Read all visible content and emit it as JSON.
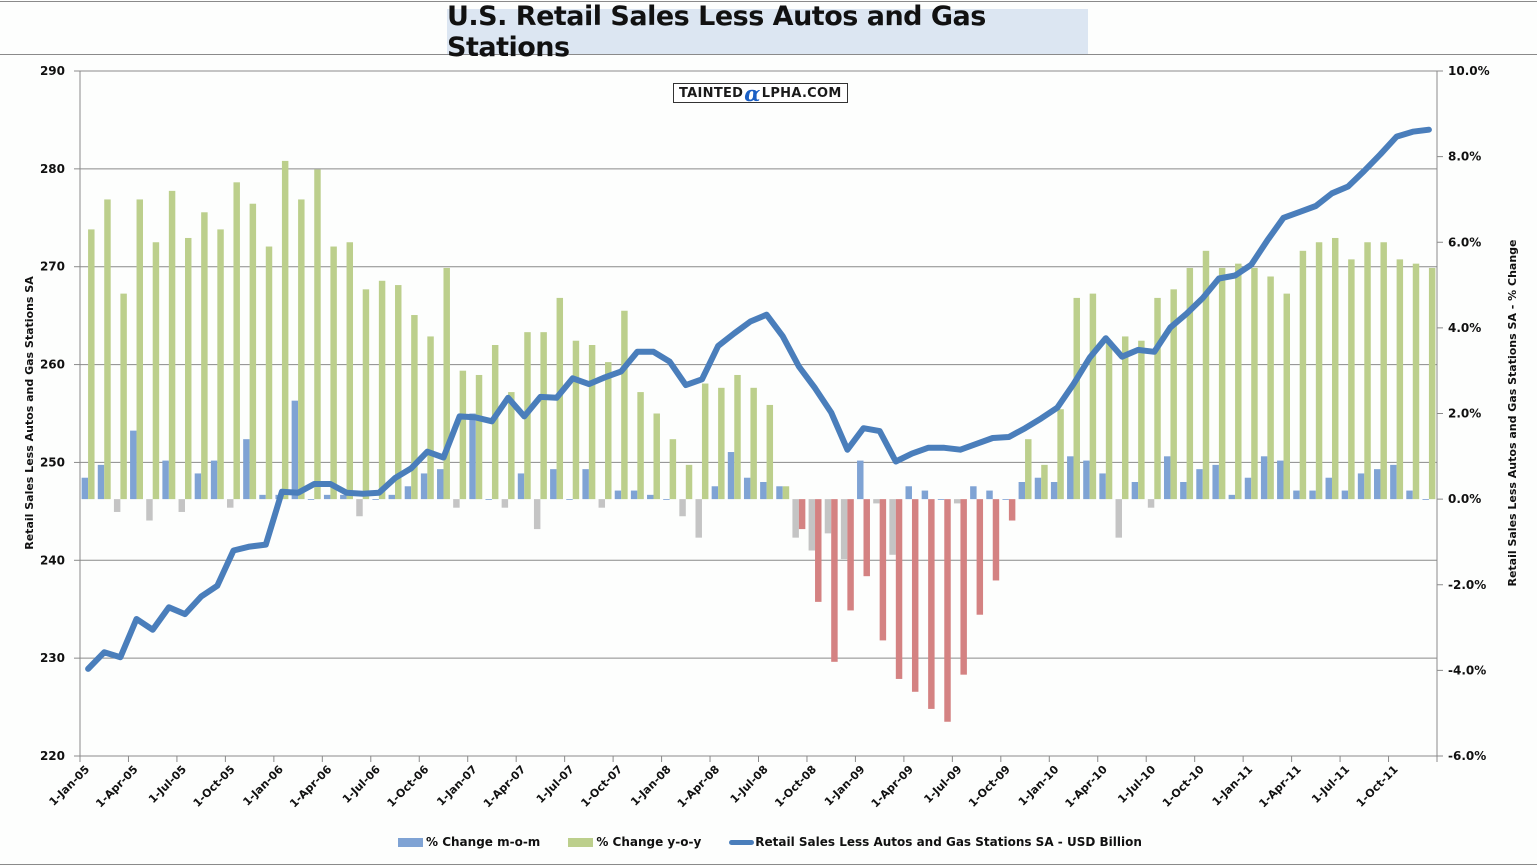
{
  "chart_data": {
    "type": "bar+line",
    "title": "U.S. Retail Sales Less Autos and Gas Stations",
    "watermark": "TaintedAlpha.com",
    "ylabel_left": "Retail Sales Less Autos and Gas Stations SA",
    "ylabel_right": "Retail Sales Less Autos and Gas Stations SA - % Change",
    "ylim_left": [
      220,
      290
    ],
    "ylim_right": [
      -6.0,
      10.0
    ],
    "yticks_left": [
      "290",
      "280",
      "270",
      "260",
      "250",
      "240",
      "230",
      "220"
    ],
    "yticks_right": [
      "10.0%",
      "8.0%",
      "6.0%",
      "4.0%",
      "2.0%",
      "0.0%",
      "-2.0%",
      "-4.0%",
      "-6.0%"
    ],
    "yticks_left_values": [
      290,
      280,
      270,
      260,
      250,
      240,
      230,
      220
    ],
    "yticks_right_values": [
      10,
      8,
      6,
      4,
      2,
      0,
      -2,
      -4,
      -6
    ],
    "grid": true,
    "legend_position": "bottom",
    "xtick_labels": [
      "1-Jan-05",
      "1-Apr-05",
      "1-Jul-05",
      "1-Oct-05",
      "1-Jan-06",
      "1-Apr-06",
      "1-Jul-06",
      "1-Oct-06",
      "1-Jan-07",
      "1-Apr-07",
      "1-Jul-07",
      "1-Oct-07",
      "1-Jan-08",
      "1-Apr-08",
      "1-Jul-08",
      "1-Oct-08",
      "1-Jan-09",
      "1-Apr-09",
      "1-Jul-09",
      "1-Oct-09",
      "1-Jan-10",
      "1-Apr-10",
      "1-Jul-10",
      "1-Oct-10",
      "1-Jan-11",
      "1-Apr-11",
      "1-Jul-11",
      "1-Oct-11"
    ],
    "start_month": "Jan-05",
    "num_months": 84,
    "colors": {
      "mom_positive": "#7fa3d4",
      "mom_negative": "#c4c4c4",
      "yoy_positive": "#bccf8c",
      "yoy_negative": "#d48282",
      "line": "#4a7ebb",
      "grid": "#8a8a8a"
    },
    "series": [
      {
        "name": "% Change m-o-m",
        "axis": "right",
        "type": "bar",
        "values": [
          0.5,
          0.8,
          -0.3,
          1.6,
          -0.5,
          0.9,
          -0.3,
          0.6,
          0.9,
          -0.2,
          1.4,
          0.1,
          0.1,
          2.3,
          0.0,
          0.1,
          0.1,
          -0.4,
          0.0,
          0.1,
          0.3,
          0.6,
          0.7,
          -0.2,
          2.0,
          0.0,
          -0.2,
          0.6,
          -0.7,
          0.7,
          0.0,
          0.7,
          -0.2,
          0.2,
          0.2,
          0.1,
          0.0,
          -0.4,
          -0.9,
          0.3,
          1.1,
          0.5,
          0.4,
          0.3,
          -0.9,
          -1.2,
          -0.8,
          -1.4,
          0.9,
          -0.1,
          -1.3,
          0.3,
          0.2,
          0.0,
          -0.1,
          0.3,
          0.2,
          0.0,
          0.4,
          0.5,
          0.4,
          1.0,
          0.9,
          0.6,
          -0.9,
          0.4,
          -0.2,
          1.0,
          0.4,
          0.7,
          0.8,
          0.1,
          0.5,
          1.0,
          0.9,
          0.2,
          0.2,
          0.5,
          0.2,
          0.6,
          0.7,
          0.8,
          0.2,
          0.0
        ]
      },
      {
        "name": "% Change y-o-y",
        "axis": "right",
        "type": "bar",
        "values": [
          6.3,
          7.0,
          4.8,
          7.0,
          6.0,
          7.2,
          6.1,
          6.7,
          6.3,
          7.4,
          6.9,
          5.9,
          7.9,
          7.0,
          7.7,
          5.9,
          6.0,
          4.9,
          5.1,
          5.0,
          4.3,
          3.8,
          5.4,
          3.0,
          2.9,
          3.6,
          2.5,
          3.9,
          3.9,
          4.7,
          3.7,
          3.6,
          3.2,
          4.4,
          2.5,
          2.0,
          1.4,
          0.8,
          2.7,
          2.6,
          2.9,
          2.6,
          2.2,
          0.3,
          -0.7,
          -2.4,
          -3.8,
          -2.6,
          -1.8,
          -3.3,
          -4.2,
          -4.5,
          -4.9,
          -5.2,
          -4.1,
          -2.7,
          -1.9,
          -0.5,
          1.4,
          0.8,
          2.1,
          4.7,
          4.8,
          3.7,
          3.8,
          3.7,
          4.7,
          4.9,
          5.4,
          5.8,
          5.4,
          5.5,
          5.4,
          5.2,
          4.8,
          5.8,
          6.0,
          6.1,
          5.6,
          6.0,
          6.0,
          5.6,
          5.5,
          5.4
        ]
      },
      {
        "name": "Retail Sales Less Autos and Gas Stations SA - USD Billion",
        "axis": "left",
        "type": "line",
        "values": [
          228.9,
          230.6,
          230.1,
          234.0,
          232.9,
          235.2,
          234.5,
          236.3,
          237.4,
          241.0,
          241.4,
          241.6,
          247.0,
          246.9,
          247.8,
          247.8,
          246.9,
          246.8,
          246.9,
          248.4,
          249.4,
          251.1,
          250.5,
          254.7,
          254.6,
          254.2,
          256.6,
          254.7,
          256.7,
          256.6,
          258.6,
          258.0,
          258.7,
          259.3,
          261.3,
          261.3,
          260.3,
          257.9,
          258.5,
          261.9,
          263.2,
          264.4,
          265.1,
          262.9,
          259.8,
          257.6,
          255.1,
          251.3,
          253.5,
          253.2,
          250.1,
          250.9,
          251.5,
          251.5,
          251.3,
          251.9,
          252.5,
          252.6,
          253.5,
          254.5,
          255.6,
          258.0,
          260.7,
          262.7,
          260.8,
          261.5,
          261.3,
          263.8,
          265.2,
          266.8,
          268.8,
          269.1,
          270.2,
          272.7,
          275.0,
          275.6,
          276.2,
          277.5,
          278.2,
          279.8,
          281.5,
          283.3,
          283.8,
          284.0
        ]
      }
    ]
  },
  "header": {
    "title": "U.S. Retail Sales Less Autos and Gas Stations",
    "logo_part1": "TAINTED",
    "logo_alpha": "α",
    "logo_part2": "LPHA.COM"
  },
  "legend": {
    "mom": "% Change m-o-m",
    "yoy": "% Change y-o-y",
    "line": "Retail Sales Less Autos and Gas Stations SA - USD Billion"
  }
}
